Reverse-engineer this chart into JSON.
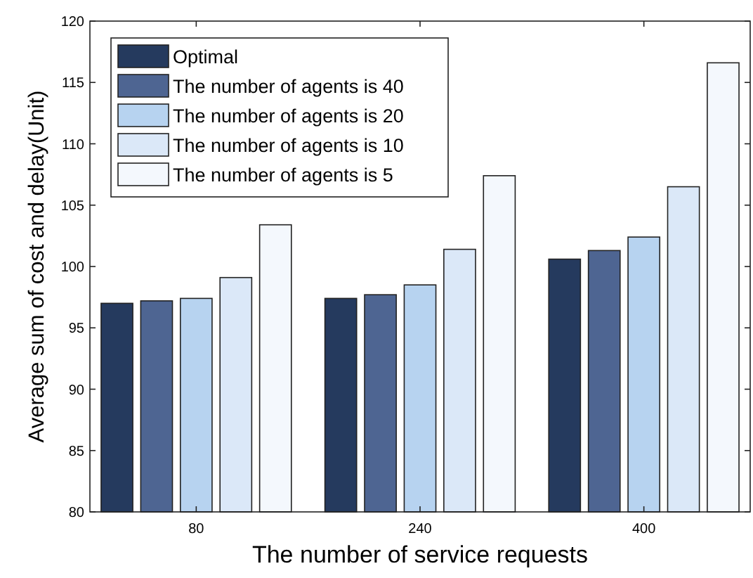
{
  "chart_data": {
    "type": "bar",
    "xlabel": "The number of service requests",
    "ylabel": "Average sum of cost and delay(Unit)",
    "categories": [
      "80",
      "240",
      "400"
    ],
    "series": [
      {
        "name": "Optimal",
        "color": "#253a5e",
        "values": [
          97.0,
          97.4,
          100.6
        ]
      },
      {
        "name": "The number of agents is 40",
        "color": "#4e6592",
        "values": [
          97.2,
          97.7,
          101.3
        ]
      },
      {
        "name": "The number of agents is 20",
        "color": "#b7d3f0",
        "values": [
          97.4,
          98.5,
          102.4
        ]
      },
      {
        "name": "The number of agents is 10",
        "color": "#dbe8f8",
        "values": [
          99.1,
          101.4,
          106.5
        ]
      },
      {
        "name": "The number of agents is 5",
        "color": "#f4f8fd",
        "values": [
          103.4,
          107.4,
          116.6
        ]
      }
    ],
    "ylim": [
      80,
      120
    ],
    "yticks": [
      80,
      85,
      90,
      95,
      100,
      105,
      110,
      115,
      120
    ],
    "grid": false,
    "legend": "top left"
  }
}
